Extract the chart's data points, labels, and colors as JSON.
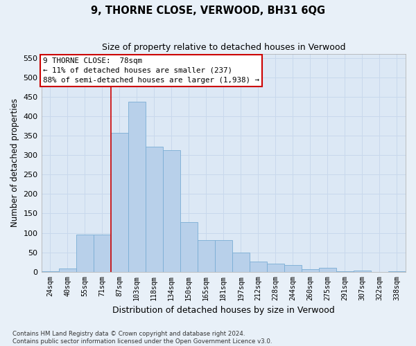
{
  "title": "9, THORNE CLOSE, VERWOOD, BH31 6QG",
  "subtitle": "Size of property relative to detached houses in Verwood",
  "xlabel": "Distribution of detached houses by size in Verwood",
  "ylabel": "Number of detached properties",
  "categories": [
    "24sqm",
    "40sqm",
    "55sqm",
    "71sqm",
    "87sqm",
    "103sqm",
    "118sqm",
    "134sqm",
    "150sqm",
    "165sqm",
    "181sqm",
    "197sqm",
    "212sqm",
    "228sqm",
    "244sqm",
    "260sqm",
    "275sqm",
    "291sqm",
    "307sqm",
    "322sqm",
    "338sqm"
  ],
  "values": [
    2,
    8,
    95,
    95,
    358,
    438,
    322,
    312,
    128,
    82,
    82,
    49,
    26,
    21,
    17,
    7,
    11,
    2,
    4,
    0,
    2
  ],
  "bar_color": "#b8d0ea",
  "bar_edge_color": "#7aadd4",
  "grid_color": "#c8d8ec",
  "background_color": "#dce8f5",
  "fig_background_color": "#e8f0f8",
  "red_line_x": 3.5,
  "annotation_text": "9 THORNE CLOSE:  78sqm\n← 11% of detached houses are smaller (237)\n88% of semi-detached houses are larger (1,938) →",
  "annotation_box_facecolor": "#ffffff",
  "annotation_box_edgecolor": "#cc0000",
  "ylim": [
    0,
    560
  ],
  "yticks": [
    0,
    50,
    100,
    150,
    200,
    250,
    300,
    350,
    400,
    450,
    500,
    550
  ],
  "footer": "Contains HM Land Registry data © Crown copyright and database right 2024.\nContains public sector information licensed under the Open Government Licence v3.0."
}
